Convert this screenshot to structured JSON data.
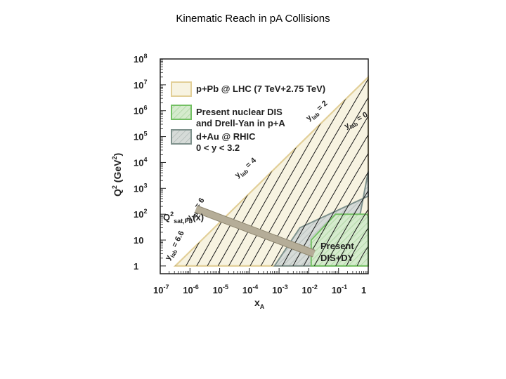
{
  "slide": {
    "title": "Kinematic Reach in pA Collisions"
  },
  "chart_data": {
    "type": "area",
    "title": "",
    "xlabel": "x",
    "xlabel_sub": "A",
    "ylabel": "Q",
    "ylabel_sup": "2",
    "ylabel_unit": "(GeV",
    "ylabel_unit_sup": "2",
    "ylabel_unit_end": ")",
    "x_scale": "log",
    "y_scale": "log",
    "xlim": [
      1e-07,
      1
    ],
    "ylim": [
      0.5,
      100000000.0
    ],
    "x_ticks": [
      {
        "value": 1e-07,
        "base": "10",
        "exp": "-7"
      },
      {
        "value": 1e-06,
        "base": "10",
        "exp": "-6"
      },
      {
        "value": 1e-05,
        "base": "10",
        "exp": "-5"
      },
      {
        "value": 0.0001,
        "base": "10",
        "exp": "-4"
      },
      {
        "value": 0.001,
        "base": "10",
        "exp": "-3"
      },
      {
        "value": 0.01,
        "base": "10",
        "exp": "-2"
      },
      {
        "value": 0.1,
        "base": "10",
        "exp": "-1"
      },
      {
        "value": 1,
        "base": "1",
        "exp": ""
      }
    ],
    "y_ticks": [
      {
        "value": 1,
        "base": "1",
        "exp": ""
      },
      {
        "value": 10,
        "base": "10",
        "exp": ""
      },
      {
        "value": 100,
        "base": "10",
        "exp": "2"
      },
      {
        "value": 1000,
        "base": "10",
        "exp": "3"
      },
      {
        "value": 10000,
        "base": "10",
        "exp": "4"
      },
      {
        "value": 100000,
        "base": "10",
        "exp": "5"
      },
      {
        "value": 1000000,
        "base": "10",
        "exp": "6"
      },
      {
        "value": 10000000,
        "base": "10",
        "exp": "7"
      },
      {
        "value": 100000000,
        "base": "10",
        "exp": "8"
      }
    ],
    "legend": [
      {
        "line1": "p+Pb @ LHC (7 TeV+2.75 TeV)",
        "line2": "",
        "fill": "#f7f3e1",
        "stroke": "#e2cf98"
      },
      {
        "line1": "Present nuclear DIS",
        "line2": "and Drell-Yan in p+A",
        "fill": "#d5ebcd",
        "stroke": "#73c063"
      },
      {
        "line1": "d+Au @ RHIC",
        "line2": "0 < y < 3.2",
        "fill": "#d6dbd8",
        "stroke": "#7e918c"
      }
    ],
    "regions": [
      {
        "name": "p+Pb @ LHC",
        "fill": "#f7f3e1",
        "stroke": "#e2cf98",
        "points": [
          [
            3.2e-07,
            1
          ],
          [
            1,
            1
          ],
          [
            1,
            20000000.0
          ]
        ]
      },
      {
        "name": "d+Au @ RHIC",
        "fill": "#d6dbd8",
        "stroke": "#7e918c",
        "points": [
          [
            0.0007,
            1
          ],
          [
            0.25,
            1
          ],
          [
            1,
            4500
          ],
          [
            1,
            500
          ],
          [
            0.005,
            30
          ],
          [
            0.0007,
            1
          ]
        ]
      },
      {
        "name": "Present DIS+DY",
        "fill": "#d5ebcd",
        "stroke": "#73c063",
        "points": [
          [
            0.012,
            1
          ],
          [
            0.012,
            10
          ],
          [
            0.08,
            100
          ],
          [
            0.9,
            100
          ],
          [
            1,
            80
          ],
          [
            1,
            1
          ]
        ]
      }
    ],
    "rapidity_lines": [
      {
        "label_text": "y",
        "label_sub": "lab",
        "label_value": "= 6.6",
        "x_at_q1": 3.2e-07
      },
      {
        "label_text": "y",
        "label_sub": "lab",
        "label_value": "= 6",
        "x_at_q1": 7e-07
      },
      {
        "label_text": "y",
        "label_sub": "lab",
        "label_value": "= 4",
        "x_at_q1": 1.5e-05
      },
      {
        "label_text": "y",
        "label_sub": "lab",
        "label_value": "= 2",
        "x_at_q1": 0.0003
      },
      {
        "label_text": "y",
        "label_sub": "lab",
        "label_value": "= 0",
        "x_at_q1": 0.005
      }
    ],
    "qsat": {
      "label_main": "Q",
      "label_sup": "2",
      "label_sub": "sat,Pb",
      "label_tail": "(x)",
      "color": "#b5ad98",
      "points": [
        [
          1.6e-06,
          160
        ],
        [
          0.015,
          3
        ]
      ]
    },
    "dis_label": {
      "line1": "Present",
      "line2": "DIS+DY"
    }
  }
}
